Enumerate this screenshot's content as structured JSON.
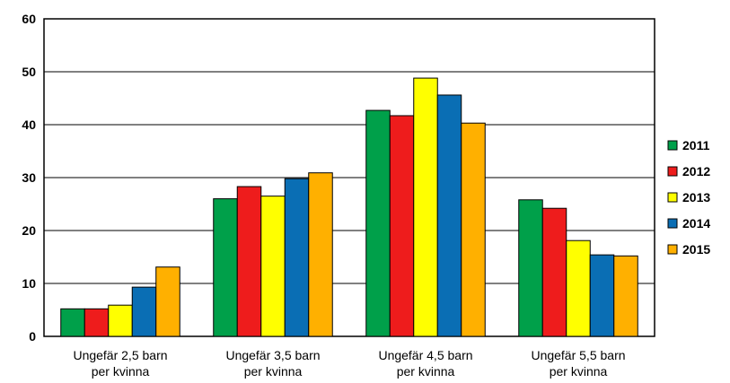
{
  "chart_data": {
    "type": "bar",
    "title": "",
    "xlabel": "",
    "ylabel": "",
    "ylim": [
      0,
      60
    ],
    "yticks": [
      0,
      10,
      20,
      30,
      40,
      50,
      60
    ],
    "grid": "horizontal",
    "legend_position": "right",
    "categories": [
      [
        "Ungefär 2,5 barn",
        "per kvinna"
      ],
      [
        "Ungefär 3,5 barn",
        "per kvinna"
      ],
      [
        "Ungefär 4,5 barn",
        "per kvinna"
      ],
      [
        "Ungefär 5,5 barn",
        "per kvinna"
      ]
    ],
    "series": [
      {
        "name": "2011",
        "color": "#00a04a",
        "values": [
          5.2,
          26.0,
          42.7,
          25.8
        ]
      },
      {
        "name": "2012",
        "color": "#ee1c1c",
        "values": [
          5.2,
          28.3,
          41.7,
          24.2
        ]
      },
      {
        "name": "2013",
        "color": "#ffff00",
        "values": [
          5.9,
          26.5,
          48.8,
          18.1
        ]
      },
      {
        "name": "2014",
        "color": "#0a6eb4",
        "values": [
          9.3,
          29.8,
          45.6,
          15.4
        ]
      },
      {
        "name": "2015",
        "color": "#ffb000",
        "values": [
          13.1,
          30.9,
          40.3,
          15.2
        ]
      }
    ]
  }
}
